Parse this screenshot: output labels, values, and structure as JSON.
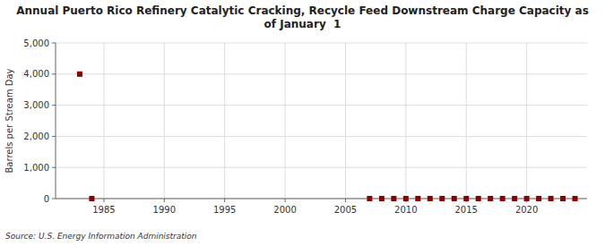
{
  "chart_data": {
    "type": "scatter",
    "title": "Annual Puerto Rico Refinery Catalytic Cracking, Recycle Feed Downstream Charge Capacity as\nof January  1",
    "y_label": "Barrels per Stream Day",
    "source": "Source: U.S. Energy Information Administration",
    "x": [
      1983,
      1984,
      2007,
      2008,
      2009,
      2010,
      2011,
      2012,
      2013,
      2014,
      2015,
      2016,
      2017,
      2018,
      2019,
      2020,
      2021,
      2022,
      2023,
      2024
    ],
    "values": [
      4000,
      0,
      0,
      0,
      0,
      0,
      0,
      0,
      0,
      0,
      0,
      0,
      0,
      0,
      0,
      0,
      0,
      0,
      0,
      0
    ],
    "color": "#8b0000",
    "marker": "square",
    "grid": true,
    "xlim": [
      1981,
      2025
    ],
    "ylim": [
      0,
      5000
    ],
    "xticks": [
      1985,
      1990,
      1995,
      2000,
      2005,
      2010,
      2015,
      2020
    ],
    "yticks": [
      0,
      {
        "value": 1000,
        "label": "1,000"
      },
      {
        "value": 2000,
        "label": "2,000"
      },
      {
        "value": 3000,
        "label": "3,000"
      },
      {
        "value": 4000,
        "label": "4,000"
      },
      {
        "value": 5000,
        "label": "5,000"
      }
    ]
  }
}
